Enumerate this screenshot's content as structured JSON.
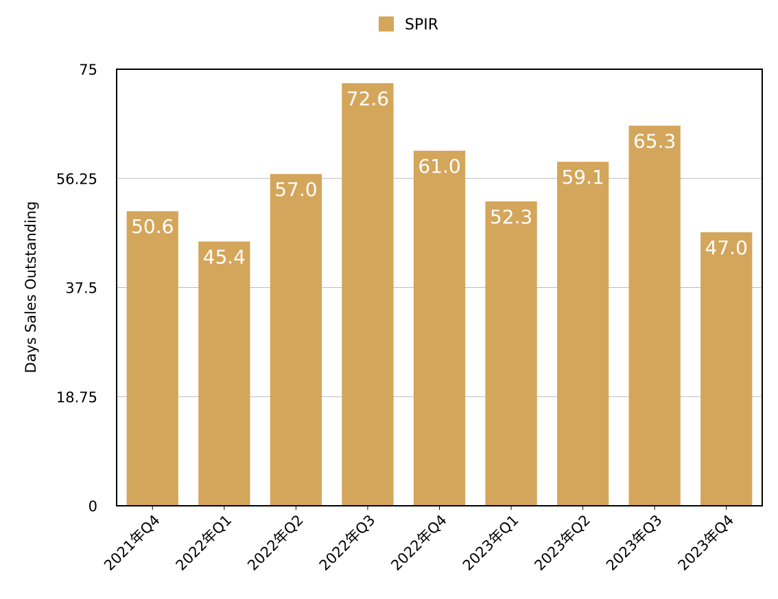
{
  "chart_data": {
    "type": "bar",
    "categories": [
      "2021年Q4",
      "2022年Q1",
      "2022年Q2",
      "2022年Q3",
      "2022年Q4",
      "2023年Q1",
      "2023年Q2",
      "2023年Q3",
      "2023年Q4"
    ],
    "series": [
      {
        "name": "SPIR",
        "values": [
          50.6,
          45.4,
          57.0,
          72.6,
          61.0,
          52.3,
          59.1,
          65.3,
          47.0
        ],
        "color": "#d4a65b"
      }
    ],
    "data_labels": [
      "50.6",
      "45.4",
      "57.0",
      "72.6",
      "61.0",
      "52.3",
      "59.1",
      "65.3",
      "47.0"
    ],
    "ylabel": "Days Sales Outstanding",
    "xlabel": "",
    "ylim": [
      0,
      75
    ],
    "yticks": [
      0,
      18.75,
      37.5,
      56.25,
      75
    ],
    "ytick_labels": [
      "0",
      "18.75",
      "37.5",
      "56.25",
      "75"
    ],
    "grid": true,
    "legend_position": "top-center"
  }
}
